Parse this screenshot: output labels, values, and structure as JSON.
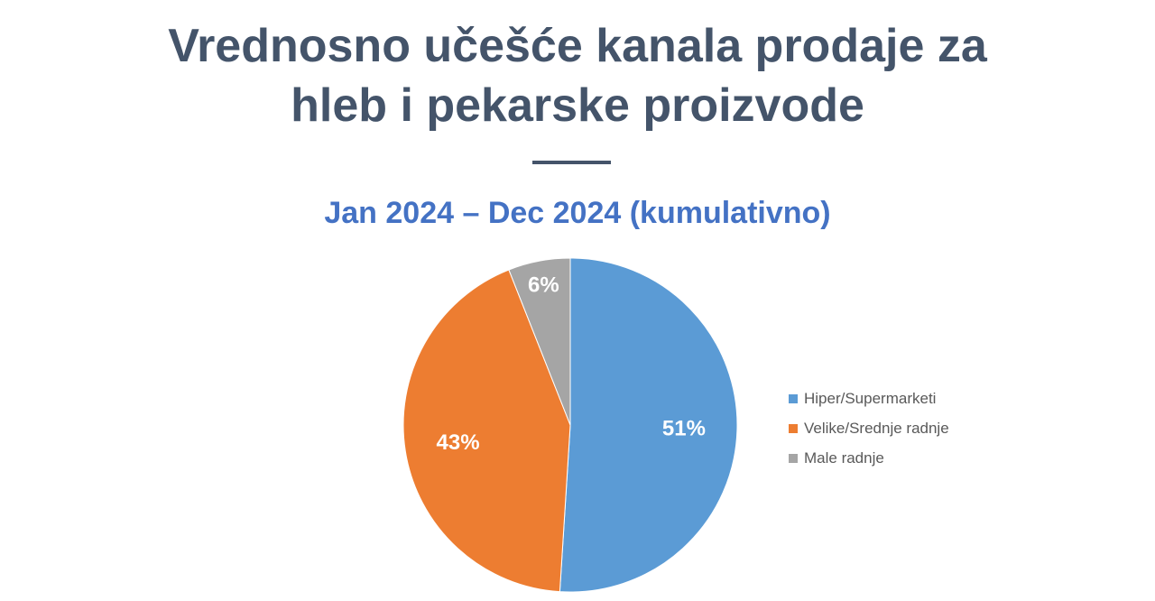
{
  "title": {
    "line1": "Vrednosno učešće kanala prodaje za",
    "line2": "hleb i pekarske proizvode"
  },
  "subtitle": "Jan 2024 – Dec 2024 (kumulativno)",
  "colors": {
    "title": "#44546a",
    "subtitle": "#4472c4",
    "slice_blue": "#5b9bd5",
    "slice_orange": "#ed7d31",
    "slice_gray": "#a5a5a5"
  },
  "chart_data": {
    "type": "pie",
    "categories": [
      "Hiper/Supermarketi",
      "Velike/Srednje radnje",
      "Male radnje"
    ],
    "values": [
      51,
      43,
      6
    ],
    "labels": [
      "51%",
      "43%",
      "6%"
    ],
    "colors": [
      "#5b9bd5",
      "#ed7d31",
      "#a5a5a5"
    ],
    "start": "12 o'clock",
    "direction": "clockwise",
    "legend_position": "right"
  }
}
